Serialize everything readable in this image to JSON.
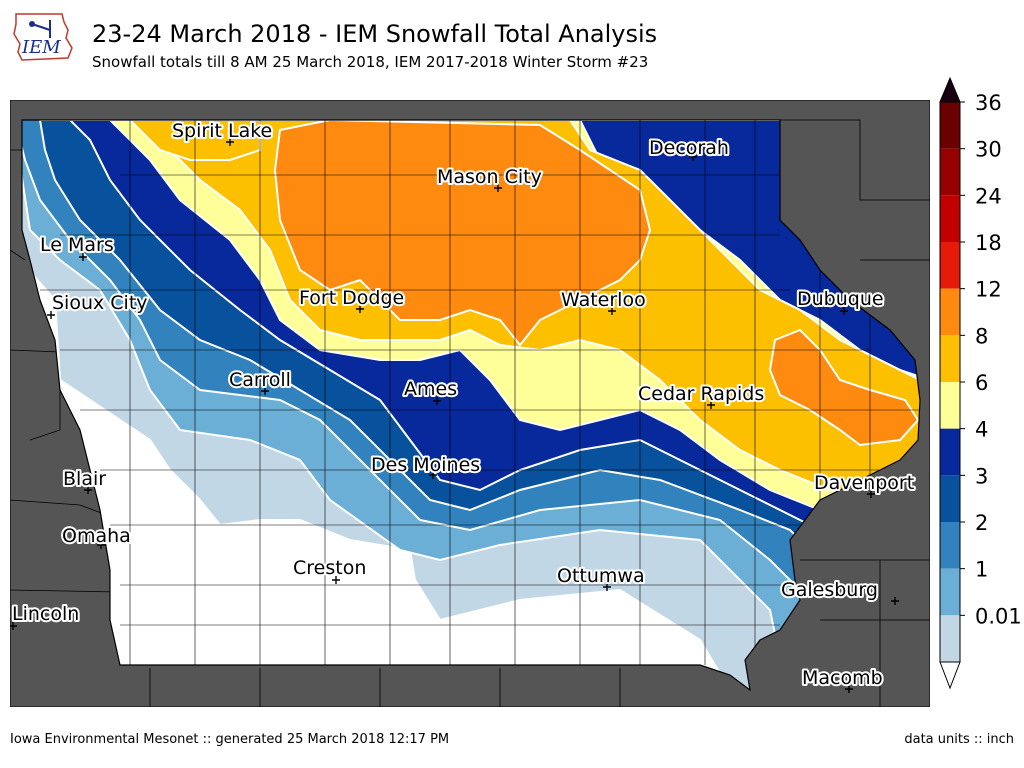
{
  "header": {
    "title": "23-24 March 2018 - IEM Snowfall Total Analysis",
    "subtitle": "Snowfall totals till 8 AM 25 March 2018, IEM 2017-2018 Winter Storm #23",
    "logo_text": "IEM"
  },
  "map": {
    "cities": [
      {
        "name": "Spirit Lake"
      },
      {
        "name": "Decorah"
      },
      {
        "name": "Mason City"
      },
      {
        "name": "Le Mars"
      },
      {
        "name": "Sioux City"
      },
      {
        "name": "Fort Dodge"
      },
      {
        "name": "Waterloo"
      },
      {
        "name": "Dubuque"
      },
      {
        "name": "Carroll"
      },
      {
        "name": "Ames"
      },
      {
        "name": "Cedar Rapids"
      },
      {
        "name": "Des Moines"
      },
      {
        "name": "Blair"
      },
      {
        "name": "Davenport"
      },
      {
        "name": "Omaha"
      },
      {
        "name": "Creston"
      },
      {
        "name": "Ottumwa"
      },
      {
        "name": "Galesburg"
      },
      {
        "name": "Lincoln"
      },
      {
        "name": "Macomb"
      }
    ],
    "colors": {
      "outside": "#555555",
      "no_snow": "#ffffff",
      "lvl_0_01": "#c2d7e6",
      "lvl_1": "#6baed6",
      "lvl_2": "#3182bd",
      "lvl_3": "#08519c",
      "lvl_4": "#08299c",
      "lvl_6": "#ffff99",
      "lvl_8": "#fdc000",
      "lvl_12": "#fe8a10"
    }
  },
  "legend": {
    "ticks": [
      "36",
      "30",
      "24",
      "18",
      "12",
      "8",
      "6",
      "4",
      "3",
      "2",
      "1",
      "0.01"
    ],
    "colors": [
      "#180010",
      "#6a0000",
      "#960000",
      "#c20000",
      "#e61a08",
      "#fe8a10",
      "#fdc000",
      "#ffff99",
      "#08299c",
      "#08519c",
      "#3182bd",
      "#6baed6",
      "#c2d7e6"
    ]
  },
  "footer": {
    "credit": "Iowa Environmental Mesonet :: generated 25 March 2018 12:17 PM",
    "units": "data units :: inch"
  }
}
